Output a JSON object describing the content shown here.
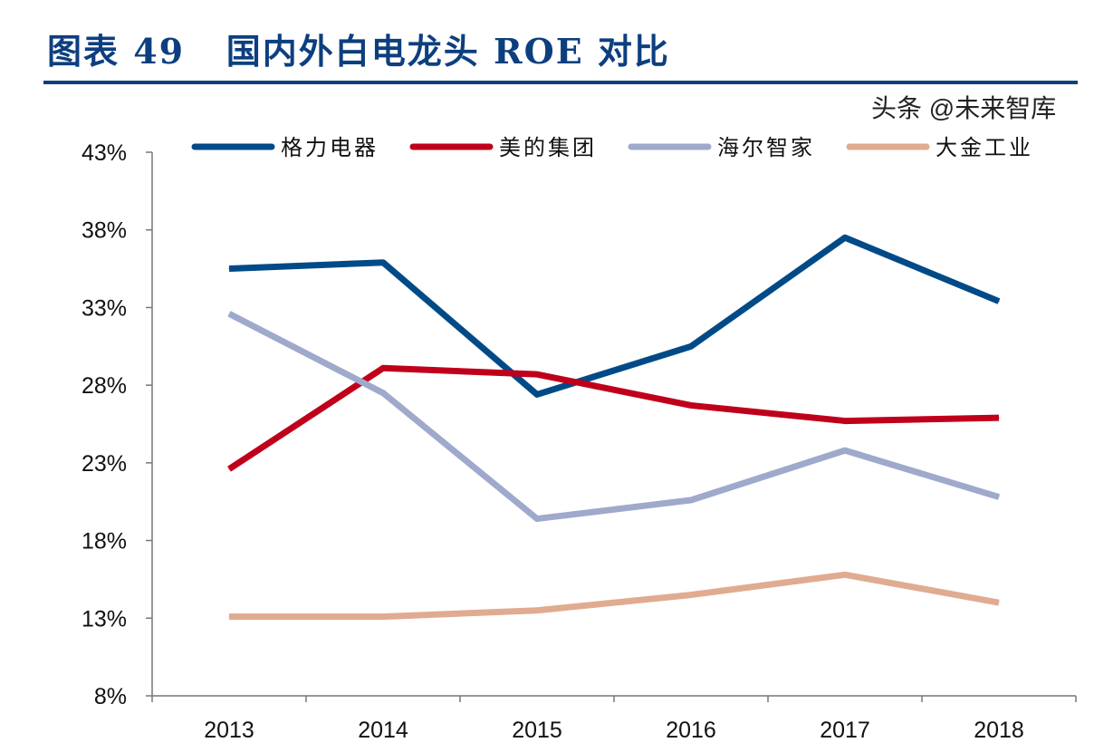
{
  "title": "图表 49   国内外白电龙头 ROE 对比",
  "watermark": "头条 @未来智库",
  "colors": {
    "格力电器": "#004a87",
    "美的集团": "#c0001a",
    "海尔智家": "#9fa9cc",
    "大金工业": "#e0ab90",
    "title": "#0d3f7f"
  },
  "chart_data": {
    "type": "line",
    "categories": [
      "2013",
      "2014",
      "2015",
      "2016",
      "2017",
      "2018"
    ],
    "ylim": [
      8,
      43
    ],
    "yticks": [
      "8%",
      "13%",
      "18%",
      "23%",
      "28%",
      "33%",
      "38%",
      "43%"
    ],
    "ytick_values": [
      8,
      13,
      18,
      23,
      28,
      33,
      38,
      43
    ],
    "grid": false,
    "legend": "top",
    "series": [
      {
        "name": "格力电器",
        "values": [
          35.5,
          35.9,
          27.4,
          30.5,
          37.5,
          33.4
        ]
      },
      {
        "name": "美的集团",
        "values": [
          22.6,
          29.1,
          28.7,
          26.7,
          25.7,
          25.9
        ]
      },
      {
        "name": "海尔智家",
        "values": [
          32.6,
          27.5,
          19.4,
          20.6,
          23.8,
          20.8
        ]
      },
      {
        "name": "大金工业",
        "values": [
          13.1,
          13.1,
          13.5,
          14.5,
          15.8,
          14.0
        ]
      }
    ]
  }
}
